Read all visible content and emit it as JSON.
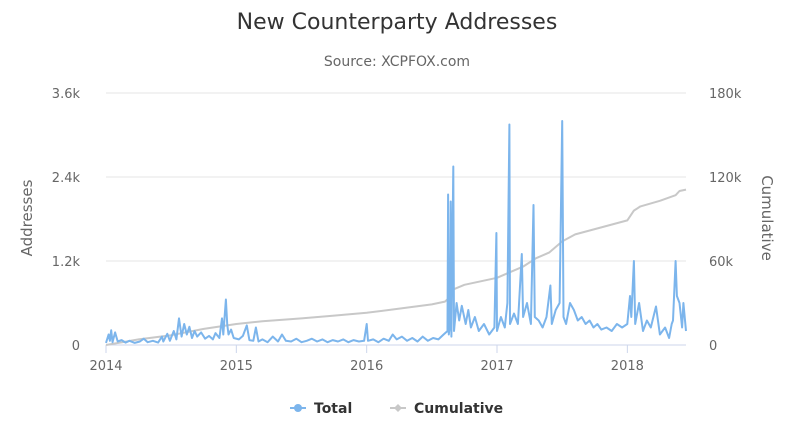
{
  "chart_data": {
    "type": "line",
    "title": "New Counterparty Addresses",
    "subtitle": "Source: XCPFOX.com",
    "ylabel": "Addresses",
    "y2label": "Cumulative",
    "xlim": [
      2014.0,
      2018.45
    ],
    "ylim": [
      0,
      3600
    ],
    "y2lim": [
      0,
      180000
    ],
    "x_ticks": [
      2014,
      2015,
      2016,
      2017,
      2018
    ],
    "x_tick_labels": [
      "2014",
      "2015",
      "2016",
      "2017",
      "2018"
    ],
    "y_ticks": [
      0,
      1200,
      2400,
      3600
    ],
    "y_tick_labels": [
      "0",
      "1.2k",
      "2.4k",
      "3.6k"
    ],
    "y2_ticks": [
      0,
      60000,
      120000,
      180000
    ],
    "y2_tick_labels": [
      "0",
      "60k",
      "120k",
      "180k"
    ],
    "grid": true,
    "legend_position": "bottom",
    "colors": {
      "total": "#7cb5ec",
      "cumulative": "#c8c8c8"
    },
    "series": [
      {
        "name": "Total",
        "axis": "left",
        "points": [
          [
            2014.0,
            30
          ],
          [
            2014.02,
            150
          ],
          [
            2014.03,
            60
          ],
          [
            2014.04,
            210
          ],
          [
            2014.05,
            40
          ],
          [
            2014.07,
            180
          ],
          [
            2014.09,
            50
          ],
          [
            2014.12,
            70
          ],
          [
            2014.15,
            35
          ],
          [
            2014.18,
            60
          ],
          [
            2014.22,
            30
          ],
          [
            2014.26,
            50
          ],
          [
            2014.29,
            90
          ],
          [
            2014.32,
            40
          ],
          [
            2014.36,
            60
          ],
          [
            2014.4,
            35
          ],
          [
            2014.43,
            120
          ],
          [
            2014.44,
            50
          ],
          [
            2014.47,
            160
          ],
          [
            2014.49,
            60
          ],
          [
            2014.52,
            200
          ],
          [
            2014.54,
            80
          ],
          [
            2014.56,
            380
          ],
          [
            2014.58,
            120
          ],
          [
            2014.6,
            300
          ],
          [
            2014.62,
            150
          ],
          [
            2014.64,
            260
          ],
          [
            2014.66,
            100
          ],
          [
            2014.68,
            200
          ],
          [
            2014.7,
            120
          ],
          [
            2014.73,
            180
          ],
          [
            2014.76,
            90
          ],
          [
            2014.79,
            130
          ],
          [
            2014.82,
            80
          ],
          [
            2014.84,
            170
          ],
          [
            2014.87,
            100
          ],
          [
            2014.89,
            380
          ],
          [
            2014.9,
            150
          ],
          [
            2014.92,
            650
          ],
          [
            2014.93,
            300
          ],
          [
            2014.94,
            150
          ],
          [
            2014.96,
            220
          ],
          [
            2014.98,
            100
          ],
          [
            2015.02,
            80
          ],
          [
            2015.05,
            130
          ],
          [
            2015.08,
            280
          ],
          [
            2015.1,
            70
          ],
          [
            2015.13,
            60
          ],
          [
            2015.15,
            250
          ],
          [
            2015.17,
            50
          ],
          [
            2015.2,
            80
          ],
          [
            2015.24,
            40
          ],
          [
            2015.28,
            120
          ],
          [
            2015.32,
            50
          ],
          [
            2015.35,
            150
          ],
          [
            2015.38,
            60
          ],
          [
            2015.42,
            50
          ],
          [
            2015.46,
            90
          ],
          [
            2015.5,
            40
          ],
          [
            2015.54,
            60
          ],
          [
            2015.58,
            90
          ],
          [
            2015.62,
            50
          ],
          [
            2015.66,
            80
          ],
          [
            2015.7,
            40
          ],
          [
            2015.74,
            70
          ],
          [
            2015.78,
            50
          ],
          [
            2015.82,
            80
          ],
          [
            2015.86,
            40
          ],
          [
            2015.9,
            70
          ],
          [
            2015.94,
            50
          ],
          [
            2015.98,
            60
          ],
          [
            2016.0,
            300
          ],
          [
            2016.01,
            60
          ],
          [
            2016.05,
            80
          ],
          [
            2016.09,
            40
          ],
          [
            2016.13,
            90
          ],
          [
            2016.17,
            60
          ],
          [
            2016.2,
            150
          ],
          [
            2016.23,
            80
          ],
          [
            2016.27,
            120
          ],
          [
            2016.31,
            60
          ],
          [
            2016.35,
            100
          ],
          [
            2016.39,
            50
          ],
          [
            2016.43,
            120
          ],
          [
            2016.47,
            60
          ],
          [
            2016.51,
            100
          ],
          [
            2016.55,
            80
          ],
          [
            2016.59,
            150
          ],
          [
            2016.62,
            200
          ],
          [
            2016.625,
            2150
          ],
          [
            2016.63,
            150
          ],
          [
            2016.64,
            300
          ],
          [
            2016.645,
            2050
          ],
          [
            2016.65,
            120
          ],
          [
            2016.665,
            2550
          ],
          [
            2016.67,
            200
          ],
          [
            2016.69,
            600
          ],
          [
            2016.71,
            350
          ],
          [
            2016.73,
            560
          ],
          [
            2016.76,
            300
          ],
          [
            2016.78,
            500
          ],
          [
            2016.8,
            250
          ],
          [
            2016.83,
            400
          ],
          [
            2016.86,
            200
          ],
          [
            2016.9,
            300
          ],
          [
            2016.94,
            150
          ],
          [
            2016.98,
            250
          ],
          [
            2016.995,
            1600
          ],
          [
            2017.0,
            200
          ],
          [
            2017.03,
            400
          ],
          [
            2017.06,
            250
          ],
          [
            2017.08,
            600
          ],
          [
            2017.095,
            3150
          ],
          [
            2017.1,
            300
          ],
          [
            2017.13,
            450
          ],
          [
            2017.16,
            300
          ],
          [
            2017.19,
            1300
          ],
          [
            2017.2,
            400
          ],
          [
            2017.23,
            600
          ],
          [
            2017.26,
            300
          ],
          [
            2017.28,
            2000
          ],
          [
            2017.29,
            400
          ],
          [
            2017.32,
            350
          ],
          [
            2017.35,
            250
          ],
          [
            2017.38,
            400
          ],
          [
            2017.41,
            850
          ],
          [
            2017.42,
            300
          ],
          [
            2017.45,
            500
          ],
          [
            2017.48,
            600
          ],
          [
            2017.5,
            3200
          ],
          [
            2017.51,
            400
          ],
          [
            2017.53,
            300
          ],
          [
            2017.56,
            600
          ],
          [
            2017.59,
            500
          ],
          [
            2017.62,
            350
          ],
          [
            2017.65,
            400
          ],
          [
            2017.68,
            300
          ],
          [
            2017.71,
            350
          ],
          [
            2017.74,
            250
          ],
          [
            2017.77,
            300
          ],
          [
            2017.8,
            220
          ],
          [
            2017.84,
            250
          ],
          [
            2017.88,
            200
          ],
          [
            2017.92,
            300
          ],
          [
            2017.96,
            250
          ],
          [
            2018.0,
            300
          ],
          [
            2018.02,
            700
          ],
          [
            2018.03,
            400
          ],
          [
            2018.05,
            1200
          ],
          [
            2018.06,
            300
          ],
          [
            2018.09,
            600
          ],
          [
            2018.12,
            200
          ],
          [
            2018.15,
            350
          ],
          [
            2018.18,
            250
          ],
          [
            2018.22,
            550
          ],
          [
            2018.25,
            150
          ],
          [
            2018.29,
            250
          ],
          [
            2018.32,
            100
          ],
          [
            2018.34,
            300
          ],
          [
            2018.35,
            350
          ],
          [
            2018.37,
            1200
          ],
          [
            2018.38,
            700
          ],
          [
            2018.4,
            600
          ],
          [
            2018.42,
            250
          ],
          [
            2018.43,
            600
          ],
          [
            2018.45,
            200
          ]
        ]
      },
      {
        "name": "Cumulative",
        "axis": "right",
        "points": [
          [
            2014.0,
            0
          ],
          [
            2014.25,
            4000
          ],
          [
            2014.5,
            7000
          ],
          [
            2014.75,
            11500
          ],
          [
            2015.0,
            15000
          ],
          [
            2015.2,
            17000
          ],
          [
            2015.5,
            19000
          ],
          [
            2015.75,
            21000
          ],
          [
            2016.0,
            23000
          ],
          [
            2016.25,
            26000
          ],
          [
            2016.5,
            29000
          ],
          [
            2016.6,
            31000
          ],
          [
            2016.63,
            33500
          ],
          [
            2016.66,
            39500
          ],
          [
            2016.75,
            43000
          ],
          [
            2017.0,
            48000
          ],
          [
            2017.1,
            52000
          ],
          [
            2017.2,
            56000
          ],
          [
            2017.3,
            62000
          ],
          [
            2017.4,
            66000
          ],
          [
            2017.5,
            74000
          ],
          [
            2017.6,
            79000
          ],
          [
            2017.8,
            84000
          ],
          [
            2018.0,
            89000
          ],
          [
            2018.05,
            96000
          ],
          [
            2018.1,
            99000
          ],
          [
            2018.25,
            103000
          ],
          [
            2018.37,
            107000
          ],
          [
            2018.4,
            110000
          ],
          [
            2018.45,
            111000
          ]
        ]
      }
    ]
  }
}
